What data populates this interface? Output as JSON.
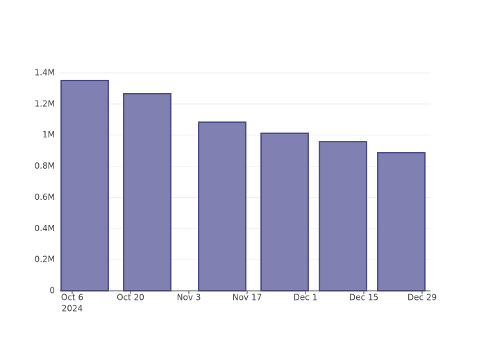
{
  "chart_data": {
    "type": "bar",
    "x": [
      "2024-10-09",
      "2024-10-24",
      "2024-11-11",
      "2024-11-26",
      "2024-12-10",
      "2024-12-24"
    ],
    "values": [
      1351000,
      1266000,
      1083000,
      1012000,
      958000,
      887000
    ],
    "color": "#8080b2",
    "edge_color": "#4b4b8b",
    "xlim": [
      "2024-10-03",
      "2024-12-31"
    ],
    "xticks": [
      {
        "value": "2024-10-06",
        "label": "Oct 6"
      },
      {
        "value": "2024-10-20",
        "label": "Oct 20"
      },
      {
        "value": "2024-11-03",
        "label": "Nov 3"
      },
      {
        "value": "2024-11-17",
        "label": "Nov 17"
      },
      {
        "value": "2024-12-01",
        "label": "Dec 1"
      },
      {
        "value": "2024-12-15",
        "label": "Dec 15"
      },
      {
        "value": "2024-12-29",
        "label": "Dec 29"
      }
    ],
    "x_year": "2024",
    "ylim": [
      0,
      1400000
    ],
    "yticks": [
      0,
      {
        "value": 200000,
        "label": "0.2M"
      },
      {
        "value": 400000,
        "label": "0.4M"
      },
      {
        "value": 600000,
        "label": "0.6M"
      },
      {
        "value": 800000,
        "label": "0.8M"
      },
      {
        "value": 1000000,
        "label": "1M"
      },
      {
        "value": 1200000,
        "label": "1.2M"
      },
      {
        "value": 1400000,
        "label": "1.4M"
      }
    ],
    "grid": true
  }
}
